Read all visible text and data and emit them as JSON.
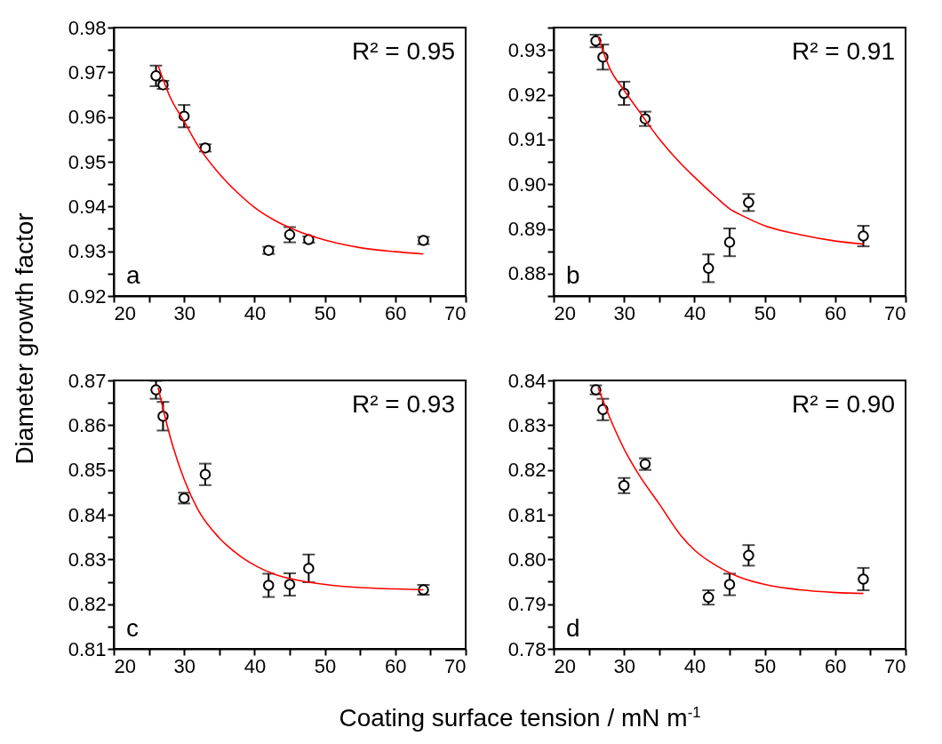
{
  "chart_data": [
    {
      "type": "scatter",
      "ylabel": "Diameter growth factor",
      "xlim": [
        20,
        70
      ],
      "ylim": [
        0.92,
        0.98
      ],
      "xticks": [
        20,
        {
          "value": 25,
          "label": null
        },
        30,
        {
          "value": 35,
          "label": null
        },
        40,
        {
          "value": 45,
          "label": null
        },
        50,
        {
          "value": 55,
          "label": null
        },
        60,
        {
          "value": 65,
          "label": null
        },
        70
      ],
      "yticks": [
        0.92,
        {
          "value": 0.925,
          "label": null
        },
        0.93,
        {
          "value": 0.935,
          "label": null
        },
        0.94,
        {
          "value": 0.945,
          "label": null
        },
        0.95,
        {
          "value": 0.955,
          "label": null
        },
        0.96,
        {
          "value": 0.965,
          "label": null
        },
        0.97,
        {
          "value": 0.975,
          "label": null
        },
        0.98
      ],
      "annotations": [
        "R² = 0.95",
        "a"
      ],
      "series": [
        {
          "type": "scatter",
          "marker": "circle",
          "color": "#000000",
          "x": [
            26,
            27,
            30,
            33,
            42,
            45,
            47.7,
            64
          ],
          "values": [
            0.9692,
            0.9672,
            0.9602,
            0.9531,
            0.9302,
            0.9337,
            0.9326,
            0.9324
          ],
          "errors": [
            0.0023,
            0.0009,
            0.0025,
            0.0008,
            0.0008,
            0.0017,
            0.0007,
            0.0008
          ]
        },
        {
          "type": "line",
          "color": "#ff0000",
          "x": [
            26.3,
            28,
            30,
            32,
            35,
            38,
            40,
            43,
            46,
            50,
            55,
            60,
            64
          ],
          "values": [
            0.9715,
            0.9645,
            0.959,
            0.9535,
            0.9473,
            0.9425,
            0.9398,
            0.9368,
            0.9346,
            0.9325,
            0.9308,
            0.9299,
            0.9294
          ]
        }
      ]
    },
    {
      "type": "scatter",
      "xlim": [
        20,
        70
      ],
      "ylim": [
        0.875,
        0.935
      ],
      "xticks": [
        20,
        {
          "value": 25,
          "label": null
        },
        30,
        {
          "value": 35,
          "label": null
        },
        40,
        {
          "value": 45,
          "label": null
        },
        50,
        {
          "value": 55,
          "label": null
        },
        60,
        {
          "value": 65,
          "label": null
        },
        70
      ],
      "yticks": [
        {
          "value": 0.875,
          "label": null
        },
        0.88,
        {
          "value": 0.885,
          "label": null
        },
        0.89,
        {
          "value": 0.895,
          "label": null
        },
        {
          "value": 0.9,
          "label": "0.90"
        },
        {
          "value": 0.905,
          "label": null
        },
        0.91,
        {
          "value": 0.915,
          "label": null
        },
        0.92,
        {
          "value": 0.925,
          "label": null
        },
        0.93,
        {
          "value": 0.935,
          "label": null
        }
      ],
      "annotations": [
        "R² = 0.91",
        "b"
      ],
      "series": [
        {
          "type": "scatter",
          "marker": "circle",
          "color": "#000000",
          "x": [
            26,
            27,
            30,
            33,
            42,
            45,
            47.7,
            64
          ],
          "values": [
            0.932,
            0.9284,
            0.9203,
            0.9146,
            0.8812,
            0.887,
            0.8959,
            0.8884
          ],
          "errors": [
            0.0014,
            0.0028,
            0.0026,
            0.0016,
            0.0031,
            0.0031,
            0.0019,
            0.0023
          ]
        },
        {
          "type": "line",
          "color": "#ff0000",
          "x": [
            26.3,
            28,
            30,
            32,
            35,
            38,
            40,
            43,
            45,
            47,
            50,
            55,
            60,
            64
          ],
          "values": [
            0.933,
            0.9258,
            0.921,
            0.9166,
            0.9101,
            0.9047,
            0.9016,
            0.8972,
            0.8945,
            0.8928,
            0.8907,
            0.8887,
            0.8873,
            0.8866
          ]
        }
      ]
    },
    {
      "type": "scatter",
      "xlabel": "Coating surface tension / mN m$^{-1}$",
      "xlim": [
        20,
        70
      ],
      "ylim": [
        0.81,
        0.87
      ],
      "xticks": [
        20,
        {
          "value": 25,
          "label": null
        },
        30,
        {
          "value": 35,
          "label": null
        },
        40,
        {
          "value": 45,
          "label": null
        },
        50,
        {
          "value": 55,
          "label": null
        },
        60,
        {
          "value": 65,
          "label": null
        },
        70
      ],
      "yticks": [
        0.81,
        {
          "value": 0.815,
          "label": null
        },
        0.82,
        {
          "value": 0.825,
          "label": null
        },
        0.83,
        {
          "value": 0.835,
          "label": null
        },
        0.84,
        {
          "value": 0.845,
          "label": null
        },
        0.85,
        {
          "value": 0.855,
          "label": null
        },
        0.86,
        {
          "value": 0.865,
          "label": null
        },
        0.87
      ],
      "annotations": [
        "R² = 0.93",
        "c"
      ],
      "series": [
        {
          "type": "scatter",
          "marker": "circle",
          "color": "#000000",
          "x": [
            26,
            27,
            30,
            33,
            42,
            45,
            47.7,
            64
          ],
          "values": [
            0.8679,
            0.862,
            0.8437,
            0.849,
            0.8242,
            0.8244,
            0.828,
            0.8232
          ],
          "errors": [
            0.002,
            0.0032,
            0.0012,
            0.0024,
            0.0026,
            0.0025,
            0.0031,
            0.0011
          ]
        },
        {
          "type": "line",
          "color": "#ff0000",
          "x": [
            26.3,
            28,
            30,
            32,
            35,
            38,
            40,
            43,
            46,
            50,
            55,
            60,
            64
          ],
          "values": [
            0.8684,
            0.8575,
            0.8479,
            0.841,
            0.8348,
            0.8307,
            0.8287,
            0.8266,
            0.8254,
            0.8244,
            0.8237,
            0.8234,
            0.8232
          ]
        }
      ]
    },
    {
      "type": "scatter",
      "xlim": [
        20,
        70
      ],
      "ylim": [
        0.78,
        0.84
      ],
      "xticks": [
        20,
        {
          "value": 25,
          "label": null
        },
        30,
        {
          "value": 35,
          "label": null
        },
        40,
        {
          "value": 45,
          "label": null
        },
        50,
        {
          "value": 55,
          "label": null
        },
        60,
        {
          "value": 65,
          "label": null
        },
        70
      ],
      "yticks": [
        0.78,
        {
          "value": 0.785,
          "label": null
        },
        0.79,
        {
          "value": 0.795,
          "label": null
        },
        {
          "value": 0.8,
          "label": "0.80"
        },
        {
          "value": 0.805,
          "label": null
        },
        0.81,
        {
          "value": 0.815,
          "label": null
        },
        0.82,
        {
          "value": 0.825,
          "label": null
        },
        0.83,
        {
          "value": 0.835,
          "label": null
        },
        0.84
      ],
      "annotations": [
        "R² = 0.90",
        "d"
      ],
      "series": [
        {
          "type": "scatter",
          "marker": "circle",
          "color": "#000000",
          "x": [
            26,
            27,
            30,
            33,
            42,
            45,
            47.7,
            64
          ],
          "values": [
            0.8379,
            0.8335,
            0.8165,
            0.8213,
            0.7915,
            0.7944,
            0.8009,
            0.7956
          ],
          "errors": [
            0.001,
            0.0024,
            0.0017,
            0.0013,
            0.0016,
            0.0024,
            0.0023,
            0.0025
          ]
        },
        {
          "type": "line",
          "color": "#ff0000",
          "x": [
            26.3,
            28,
            30,
            32,
            35,
            38,
            40,
            43,
            46,
            50,
            55,
            60,
            64
          ],
          "values": [
            0.8384,
            0.8316,
            0.8247,
            0.8192,
            0.8124,
            0.8055,
            0.8021,
            0.7987,
            0.7963,
            0.7944,
            0.7932,
            0.7926,
            0.7924
          ]
        }
      ]
    }
  ]
}
